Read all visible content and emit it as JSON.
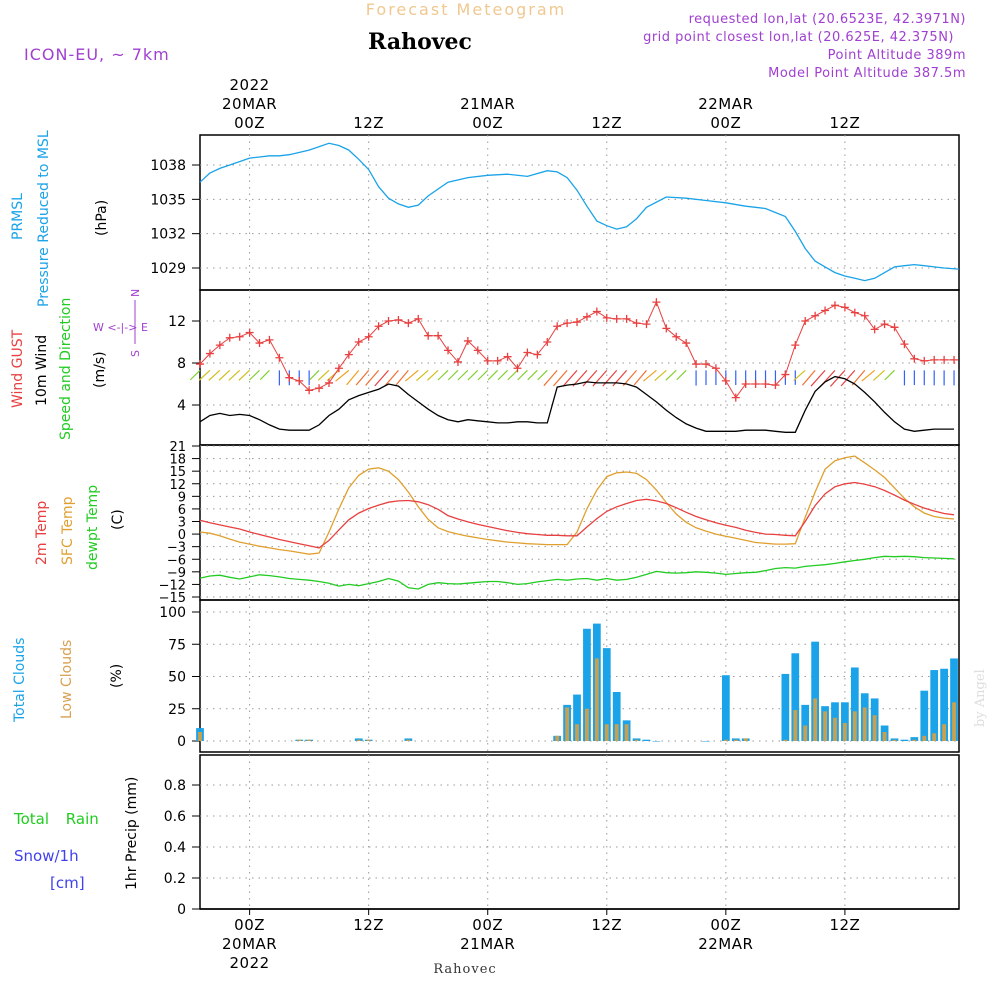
{
  "header": {
    "supertitle": "Forecast Meteogram",
    "location": "Rahovec",
    "model": "ICON-EU, ~ 7km",
    "requested": "requested lon,lat (20.6523E, 42.3971N)",
    "grid": "grid point closest lon,lat (20.625E, 42.375N)",
    "point_alt": "Point Altitude 389m",
    "model_alt": "Model Point Altitude 387.5m",
    "watermark": "by Angel",
    "footer": "Rahovec"
  },
  "time_axis": {
    "top_labels": [
      {
        "t": 0,
        "lines": [
          "2022",
          "20MAR",
          "00Z"
        ]
      },
      {
        "t": 12,
        "lines": [
          "12Z"
        ]
      },
      {
        "t": 24,
        "lines": [
          "21MAR",
          "00Z"
        ]
      },
      {
        "t": 36,
        "lines": [
          "12Z"
        ]
      },
      {
        "t": 48,
        "lines": [
          "22MAR",
          "00Z"
        ]
      },
      {
        "t": 60,
        "lines": [
          "12Z"
        ]
      }
    ],
    "bottom_labels": [
      {
        "t": 0,
        "lines": [
          "00Z",
          "20MAR",
          "2022"
        ]
      },
      {
        "t": 12,
        "lines": [
          "12Z"
        ]
      },
      {
        "t": 24,
        "lines": [
          "00Z",
          "21MAR"
        ]
      },
      {
        "t": 36,
        "lines": [
          "12Z"
        ]
      },
      {
        "t": 48,
        "lines": [
          "00Z",
          "22MAR"
        ]
      },
      {
        "t": 60,
        "lines": [
          "12Z"
        ]
      }
    ],
    "range_hours": [
      -5,
      71.5
    ]
  },
  "panels": {
    "pressure": {
      "labels": [
        "PRMSL",
        "Pressure Reduced to MSL"
      ],
      "unit": "(hPa)",
      "ticks": [
        1029,
        1032,
        1035,
        1038
      ]
    },
    "wind": {
      "labels": [
        "Wind GUST",
        "10m Wind",
        "Speed and Direction"
      ],
      "unit": "(m/s)",
      "compass": [
        "N",
        "W <-|-> E",
        "S"
      ],
      "ticks": [
        4,
        8,
        12
      ]
    },
    "temp": {
      "labels": [
        "2m Temp",
        "SFC Temp",
        "dewpt Temp"
      ],
      "unit": "(C)",
      "ticks": [
        -15,
        -12,
        -9,
        -6,
        -3,
        0,
        3,
        6,
        9,
        12,
        15,
        18,
        21
      ]
    },
    "clouds": {
      "labels": [
        "Total Clouds",
        "Low Clouds"
      ],
      "unit": "(%)",
      "ticks": [
        0,
        25,
        50,
        75,
        100
      ]
    },
    "precip": {
      "labels": [
        "Total Rain",
        "Snow/1h",
        "[cm]"
      ],
      "unit": "1hr Precip (mm)",
      "ticks": [
        "0",
        "0.2",
        "0.4",
        "0.6",
        "0.8"
      ]
    }
  },
  "colors": {
    "pressure": "#1aa3e8",
    "gust": "#e84040",
    "wind10": "#000000",
    "t2m": "#e84040",
    "sfc": "#e0a030",
    "dewpt": "#22cc22",
    "total_clouds": "#1aa3e8",
    "low_clouds": "#c8a050",
    "rain": "#22cc22",
    "snow": "#4040ee",
    "compass": "#a040d0"
  },
  "chart_data": {
    "type": "line",
    "x_unit": "forecast hour from 20MAR 2022 00Z",
    "pressure": {
      "x": [
        -5,
        -4,
        -3,
        -2,
        0,
        1,
        2,
        3,
        4,
        6,
        8,
        9,
        10,
        11,
        12,
        13,
        14,
        15,
        16,
        17,
        18,
        20,
        22,
        24,
        26,
        28,
        30,
        31,
        32,
        33,
        34,
        35,
        36,
        37,
        38,
        39,
        40,
        42,
        44,
        46,
        48,
        50,
        52,
        54,
        55,
        56,
        57,
        58,
        59,
        60,
        61,
        62,
        63,
        64,
        65,
        66,
        67,
        68,
        69,
        70,
        71.5
      ],
      "y": [
        1036.5,
        1037.3,
        1037.7,
        1038.0,
        1038.6,
        1038.7,
        1038.8,
        1038.8,
        1038.9,
        1039.3,
        1039.9,
        1039.7,
        1039.3,
        1038.5,
        1037.6,
        1036.1,
        1035.1,
        1034.6,
        1034.3,
        1034.5,
        1035.3,
        1036.5,
        1036.9,
        1037.1,
        1037.2,
        1037.0,
        1037.5,
        1037.4,
        1036.9,
        1035.8,
        1034.4,
        1033.1,
        1032.7,
        1032.4,
        1032.6,
        1033.3,
        1034.3,
        1035.2,
        1035.1,
        1034.9,
        1034.7,
        1034.4,
        1034.2,
        1033.5,
        1032.2,
        1030.7,
        1029.6,
        1029.1,
        1028.6,
        1028.3,
        1028.1,
        1027.9,
        1028.1,
        1028.6,
        1029.1,
        1029.2,
        1029.3,
        1029.2,
        1029.1,
        1029.0,
        1028.9
      ]
    },
    "wind_gust": {
      "x": [
        -5,
        -4,
        -3,
        -2,
        -1,
        0,
        1,
        2,
        3,
        4,
        5,
        6,
        7,
        8,
        9,
        10,
        11,
        12,
        13,
        14,
        15,
        16,
        17,
        18,
        19,
        20,
        21,
        22,
        23,
        24,
        25,
        26,
        27,
        28,
        29,
        30,
        31,
        32,
        33,
        34,
        35,
        36,
        37,
        38,
        39,
        40,
        41,
        42,
        43,
        44,
        45,
        46,
        47,
        48,
        49,
        50,
        51,
        52,
        53,
        54,
        55,
        56,
        57,
        58,
        59,
        60,
        61,
        62,
        63,
        64,
        65,
        66,
        67,
        68,
        69,
        70,
        71
      ],
      "y": [
        7.9,
        8.9,
        9.7,
        10.4,
        10.5,
        10.9,
        9.9,
        10.2,
        8.5,
        6.6,
        6.3,
        5.4,
        5.6,
        6.1,
        7.5,
        8.8,
        10.0,
        10.5,
        11.5,
        12.0,
        12.1,
        11.8,
        12.2,
        10.6,
        10.6,
        9.2,
        8.1,
        10.1,
        9.2,
        8.2,
        8.2,
        8.6,
        7.5,
        9.0,
        8.8,
        10.0,
        11.5,
        11.8,
        11.9,
        12.4,
        12.9,
        12.3,
        12.2,
        12.2,
        11.8,
        11.7,
        13.8,
        11.3,
        10.5,
        9.9,
        7.9,
        7.9,
        7.5,
        6.3,
        4.7,
        6.0,
        6.0,
        6.0,
        5.9,
        6.9,
        9.7,
        12.0,
        12.5,
        13.0,
        13.5,
        13.3,
        12.8,
        12.5,
        11.2,
        11.7,
        11.4,
        9.8,
        8.4,
        8.2,
        8.3,
        8.3,
        8.3
      ]
    },
    "wind10": {
      "x": [
        -5,
        -4,
        -3,
        -2,
        -1,
        0,
        1,
        2,
        3,
        4,
        5,
        6,
        7,
        8,
        9,
        10,
        11,
        12,
        13,
        14,
        15,
        16,
        17,
        18,
        19,
        20,
        21,
        22,
        23,
        24,
        25,
        26,
        27,
        28,
        29,
        30,
        31,
        32,
        33,
        34,
        35,
        36,
        37,
        38,
        39,
        40,
        41,
        42,
        43,
        44,
        45,
        46,
        47,
        48,
        49,
        50,
        51,
        52,
        53,
        54,
        55,
        56,
        57,
        58,
        59,
        60,
        61,
        62,
        63,
        64,
        65,
        66,
        67,
        68,
        69,
        70,
        71
      ],
      "y": [
        2.4,
        3.0,
        3.2,
        3.0,
        3.1,
        3.0,
        2.6,
        2.1,
        1.7,
        1.6,
        1.6,
        1.6,
        2.1,
        3.0,
        3.6,
        4.5,
        4.9,
        5.2,
        5.5,
        6.0,
        5.8,
        5.0,
        4.3,
        3.6,
        3.0,
        2.6,
        2.4,
        2.6,
        2.5,
        2.4,
        2.3,
        2.3,
        2.4,
        2.4,
        2.3,
        2.3,
        5.7,
        5.9,
        6.0,
        6.2,
        6.1,
        6.1,
        6.1,
        6.0,
        5.7,
        5.0,
        4.3,
        3.5,
        2.8,
        2.2,
        1.8,
        1.5,
        1.5,
        1.5,
        1.5,
        1.6,
        1.6,
        1.6,
        1.5,
        1.4,
        1.4,
        3.5,
        5.3,
        6.2,
        6.7,
        6.5,
        6.0,
        5.2,
        4.3,
        3.3,
        2.4,
        1.7,
        1.5,
        1.6,
        1.7,
        1.7,
        1.7
      ]
    },
    "temp_2m": {
      "x": [
        -5,
        -4,
        -3,
        -2,
        -1,
        0,
        1,
        2,
        3,
        4,
        5,
        6,
        7,
        8,
        9,
        10,
        11,
        12,
        13,
        14,
        15,
        16,
        17,
        18,
        19,
        20,
        21,
        22,
        23,
        24,
        25,
        26,
        27,
        28,
        29,
        30,
        31,
        32,
        33,
        34,
        35,
        36,
        37,
        38,
        39,
        40,
        41,
        42,
        43,
        44,
        45,
        46,
        47,
        48,
        49,
        50,
        51,
        52,
        53,
        54,
        55,
        56,
        57,
        58,
        59,
        60,
        61,
        62,
        63,
        64,
        65,
        66,
        67,
        68,
        69,
        70,
        71
      ],
      "y": [
        3.3,
        2.7,
        2.2,
        1.7,
        1.2,
        0.5,
        -0.1,
        -0.7,
        -1.3,
        -1.8,
        -2.3,
        -2.8,
        -3.3,
        -1.5,
        1.0,
        3.4,
        5.0,
        6.1,
        6.9,
        7.6,
        7.9,
        8.0,
        7.7,
        7.0,
        5.9,
        4.4,
        3.6,
        2.9,
        2.3,
        1.8,
        1.3,
        0.8,
        0.4,
        0.1,
        -0.1,
        -0.3,
        -0.3,
        -0.4,
        -0.4,
        1.7,
        3.7,
        5.4,
        6.5,
        7.3,
        8.0,
        8.3,
        7.9,
        7.3,
        6.3,
        5.2,
        4.2,
        3.4,
        2.7,
        2.1,
        1.6,
        0.9,
        0.4,
        0.0,
        -0.1,
        -0.3,
        -0.4,
        3.0,
        6.8,
        9.6,
        11.3,
        12.0,
        12.3,
        11.9,
        11.3,
        10.4,
        9.3,
        8.1,
        7.1,
        6.2,
        5.5,
        4.9,
        4.6
      ]
    },
    "temp_sfc": {
      "x": [
        -5,
        -4,
        -3,
        -2,
        -1,
        0,
        1,
        2,
        3,
        4,
        5,
        6,
        7,
        8,
        9,
        10,
        11,
        12,
        13,
        14,
        15,
        16,
        17,
        18,
        19,
        20,
        21,
        22,
        23,
        24,
        25,
        26,
        27,
        28,
        29,
        30,
        31,
        32,
        33,
        34,
        35,
        36,
        37,
        38,
        39,
        40,
        41,
        42,
        43,
        44,
        45,
        46,
        47,
        48,
        49,
        50,
        51,
        52,
        53,
        54,
        55,
        56,
        57,
        58,
        59,
        60,
        61,
        62,
        63,
        64,
        65,
        66,
        67,
        68,
        69,
        70,
        71
      ],
      "y": [
        0.5,
        0.2,
        -0.4,
        -1.2,
        -1.9,
        -2.4,
        -2.9,
        -3.3,
        -3.7,
        -4.0,
        -4.4,
        -4.8,
        -4.5,
        0.5,
        6.0,
        11.0,
        14.0,
        15.5,
        15.8,
        15.0,
        13.0,
        10.0,
        6.5,
        3.5,
        1.5,
        0.6,
        0.0,
        -0.5,
        -0.9,
        -1.3,
        -1.6,
        -1.9,
        -2.1,
        -2.3,
        -2.4,
        -2.5,
        -2.5,
        -2.5,
        0.5,
        6.0,
        10.5,
        13.7,
        14.6,
        14.8,
        14.5,
        13.0,
        10.5,
        7.5,
        4.8,
        2.8,
        1.5,
        0.7,
        0.0,
        -0.5,
        -1.0,
        -1.5,
        -2.0,
        -2.2,
        -2.4,
        -2.4,
        -2.3,
        4.0,
        10.0,
        15.5,
        17.5,
        18.2,
        18.6,
        17.0,
        15.3,
        13.5,
        11.0,
        8.5,
        6.5,
        5.0,
        4.2,
        3.8,
        3.6
      ]
    },
    "dewpoint": {
      "x": [
        -5,
        -4,
        -3,
        -2,
        -1,
        0,
        1,
        2,
        3,
        4,
        5,
        6,
        7,
        8,
        9,
        10,
        11,
        12,
        13,
        14,
        15,
        16,
        17,
        18,
        19,
        20,
        21,
        22,
        23,
        24,
        25,
        26,
        27,
        28,
        29,
        30,
        31,
        32,
        33,
        34,
        35,
        36,
        37,
        38,
        39,
        40,
        41,
        42,
        43,
        44,
        45,
        46,
        47,
        48,
        49,
        50,
        51,
        52,
        53,
        54,
        55,
        56,
        57,
        58,
        59,
        60,
        61,
        62,
        63,
        64,
        65,
        66,
        67,
        68,
        69,
        70,
        71
      ],
      "y": [
        -10.5,
        -10.0,
        -9.8,
        -10.3,
        -10.7,
        -10.2,
        -9.7,
        -9.9,
        -10.2,
        -10.6,
        -10.8,
        -11.0,
        -11.3,
        -11.7,
        -12.4,
        -12.0,
        -12.3,
        -11.8,
        -11.3,
        -10.6,
        -11.2,
        -12.8,
        -13.1,
        -12.0,
        -11.6,
        -11.8,
        -11.9,
        -11.7,
        -11.5,
        -11.3,
        -11.3,
        -11.6,
        -12.0,
        -11.8,
        -11.4,
        -11.1,
        -10.8,
        -11.0,
        -10.7,
        -10.6,
        -11.0,
        -10.6,
        -11.0,
        -10.8,
        -10.3,
        -9.6,
        -8.9,
        -9.2,
        -9.3,
        -9.2,
        -9.0,
        -9.1,
        -9.3,
        -9.6,
        -9.4,
        -9.2,
        -9.1,
        -8.7,
        -8.2,
        -8.0,
        -8.1,
        -7.7,
        -7.5,
        -7.3,
        -7.0,
        -6.6,
        -6.3,
        -6.0,
        -5.6,
        -5.3,
        -5.4,
        -5.3,
        -5.4,
        -5.6,
        -5.7,
        -5.8,
        -5.9
      ]
    },
    "clouds": {
      "x": [
        -5,
        5,
        6,
        11,
        12,
        16,
        31,
        32,
        33,
        34,
        35,
        36,
        37,
        38,
        39,
        40,
        41,
        46,
        48,
        49,
        50,
        54,
        55,
        56,
        57,
        58,
        59,
        60,
        61,
        62,
        63,
        64,
        65,
        66,
        67,
        68,
        69,
        70,
        71
      ],
      "total": [
        10,
        1,
        1,
        2,
        1,
        2,
        4,
        28,
        36,
        87,
        91,
        72,
        38,
        16,
        2,
        1,
        0,
        0,
        51,
        2,
        2,
        52,
        68,
        28,
        77,
        27,
        30,
        30,
        57,
        37,
        33,
        12,
        2,
        1,
        3,
        39,
        55,
        56,
        64
      ],
      "low": [
        7,
        1,
        1,
        1,
        1,
        1,
        4,
        26,
        13,
        25,
        64,
        13,
        13,
        13,
        1,
        0,
        0,
        0,
        1,
        1,
        2,
        1,
        24,
        12,
        33,
        23,
        18,
        14,
        23,
        26,
        20,
        7,
        1,
        0,
        1,
        4,
        6,
        13,
        30
      ]
    },
    "precip": {
      "x": [
        -5,
        71.5
      ],
      "rain": [
        0,
        0
      ],
      "snow": [
        0,
        0
      ]
    }
  }
}
